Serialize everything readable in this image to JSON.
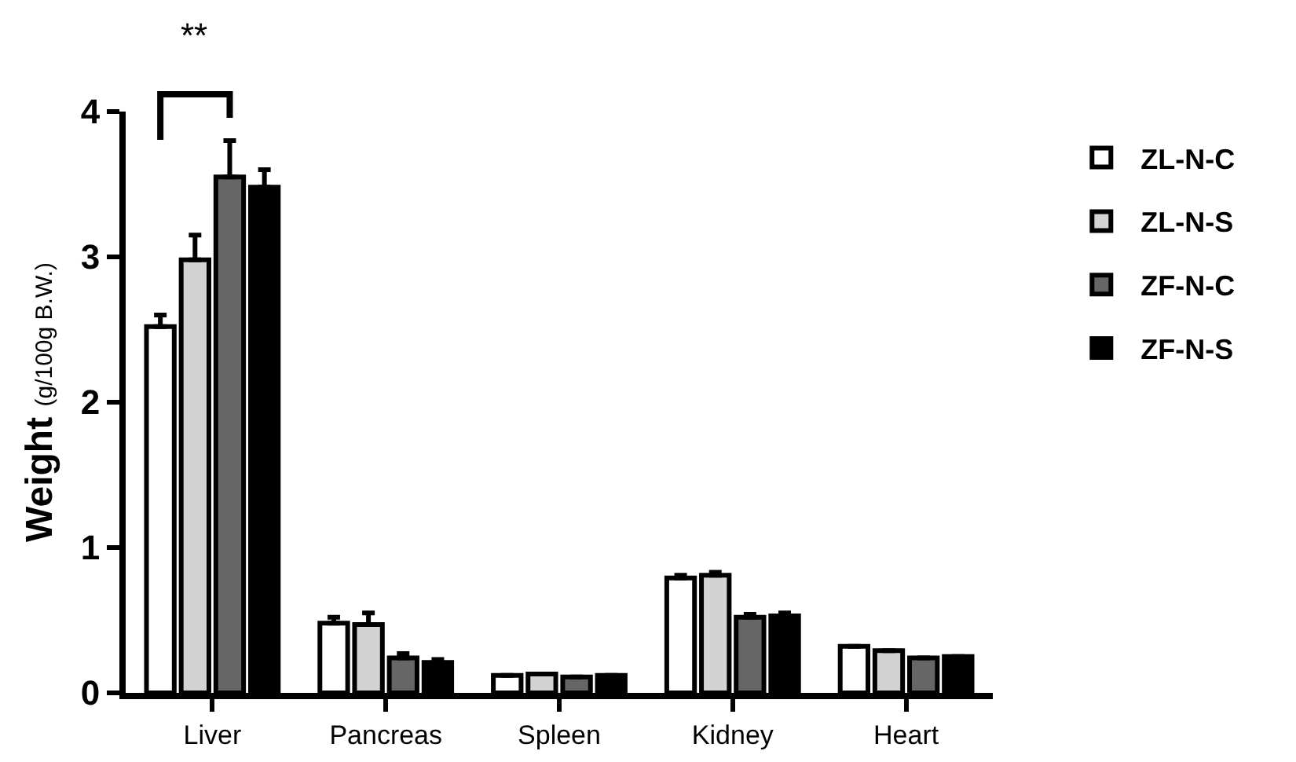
{
  "chart_data": {
    "type": "bar",
    "ylabel": "Weight (g/100g B.W.)",
    "categories": [
      "Liver",
      "Pancreas",
      "Spleen",
      "Kidney",
      "Heart"
    ],
    "series": [
      {
        "name": "ZL-N-C",
        "color": "#ffffff",
        "values": [
          2.52,
          0.48,
          0.12,
          0.79,
          0.32
        ],
        "errors": [
          [
            2.52,
            2.6
          ],
          [
            0.48,
            0.52
          ],
          null,
          [
            0.79,
            0.81
          ],
          null
        ]
      },
      {
        "name": "ZL-N-S",
        "color": "#d3d3d3",
        "values": [
          2.98,
          0.47,
          0.13,
          0.81,
          0.29
        ],
        "errors": [
          [
            2.98,
            3.15
          ],
          [
            0.47,
            0.55
          ],
          null,
          [
            0.81,
            0.83
          ],
          null
        ]
      },
      {
        "name": "ZF-N-C",
        "color": "#666666",
        "values": [
          3.55,
          0.24,
          0.11,
          0.52,
          0.24
        ],
        "errors": [
          [
            3.55,
            3.8
          ],
          [
            0.24,
            0.27
          ],
          null,
          [
            0.52,
            0.54
          ],
          null
        ]
      },
      {
        "name": "ZF-N-S",
        "color": "#000000",
        "values": [
          3.48,
          0.21,
          0.12,
          0.53,
          0.25
        ],
        "errors": [
          [
            3.48,
            3.6
          ],
          [
            0.21,
            0.23
          ],
          null,
          [
            0.53,
            0.55
          ],
          null
        ]
      }
    ],
    "ylim": [
      0,
      4
    ],
    "yticks": [
      0,
      1,
      2,
      3,
      4
    ],
    "legend": "right",
    "annotations": [
      "**"
    ]
  }
}
